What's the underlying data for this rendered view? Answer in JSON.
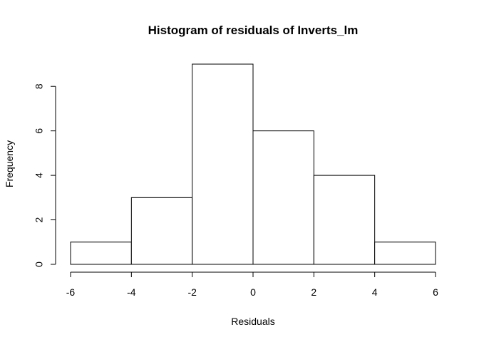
{
  "chart_data": {
    "type": "bar",
    "title": "Histogram of residuals of Inverts_lm",
    "xlabel": "Residuals",
    "ylabel": "Frequency",
    "bins": [
      {
        "start": -6,
        "end": -4,
        "count": 1
      },
      {
        "start": -4,
        "end": -2,
        "count": 3
      },
      {
        "start": -2,
        "end": 0,
        "count": 9
      },
      {
        "start": 0,
        "end": 2,
        "count": 6
      },
      {
        "start": 2,
        "end": 4,
        "count": 4
      },
      {
        "start": 4,
        "end": 6,
        "count": 1
      }
    ],
    "xticks": [
      "-6",
      "-4",
      "-2",
      "0",
      "2",
      "4",
      "6"
    ],
    "yticks": [
      "0",
      "2",
      "4",
      "6",
      "8"
    ],
    "xlim": [
      -6,
      6
    ],
    "ylim": [
      0,
      9
    ],
    "grid": false,
    "colors": {
      "bar_fill": "#ffffff",
      "bar_stroke": "#000000"
    }
  }
}
